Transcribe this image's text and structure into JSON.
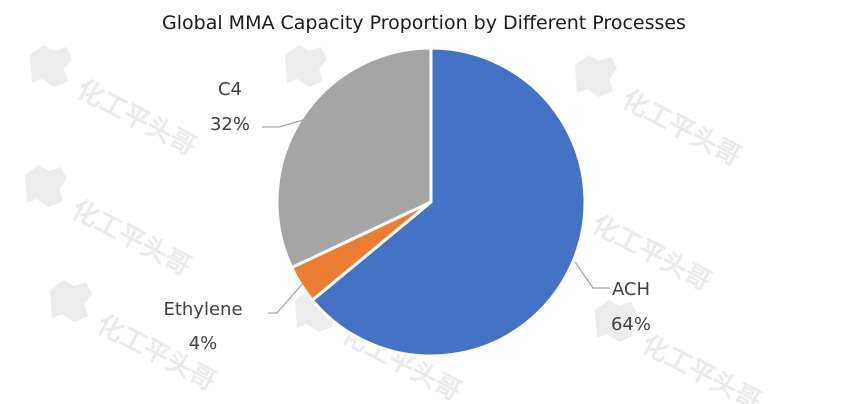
{
  "watermark": {
    "text": "化工平头哥"
  },
  "chart_data": {
    "type": "pie",
    "title": "Global MMA Capacity Proportion by Different Processes",
    "categories": [
      "ACH",
      "Ethylene",
      "C4"
    ],
    "values": [
      64,
      4,
      32
    ],
    "percent_labels": [
      "64%",
      "4%",
      "32%"
    ],
    "colors": [
      "#4472c4",
      "#ed7d31",
      "#a5a5a5"
    ],
    "start_angle_deg": 0,
    "direction": "clockwise",
    "legend": "none"
  }
}
